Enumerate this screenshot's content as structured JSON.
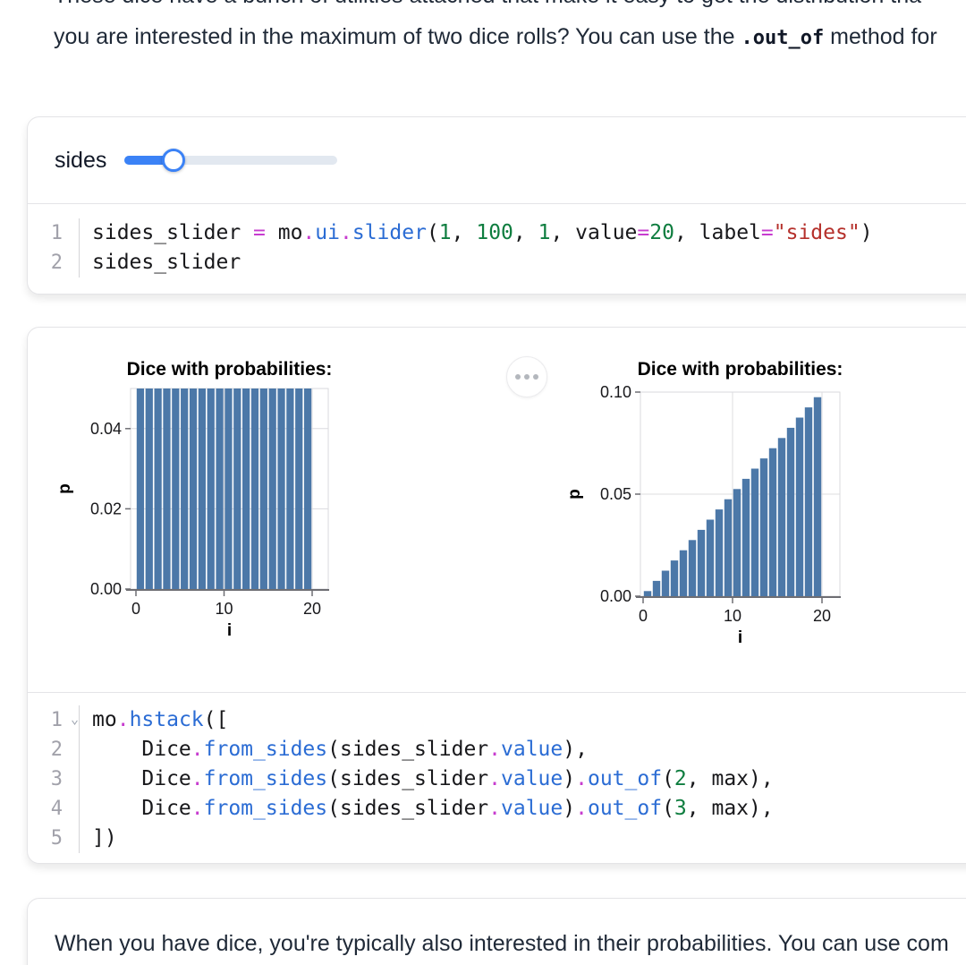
{
  "prose_top": {
    "line1": "These dice have a bunch of utilities attached that make it easy to get the distribution tha",
    "line2_prefix": "you are interested in the maximum of two dice rolls? You can use the ",
    "line2_code": ".out_of",
    "line2_suffix": " method for"
  },
  "slider": {
    "label": "sides",
    "min": 1,
    "max": 100,
    "step": 1,
    "value": 20
  },
  "code_colors": {
    "p": "#18181b",
    "o": "#c73ccf",
    "f": "#2b6cd4",
    "n": "#0e7d3f",
    "s": "#b5302b"
  },
  "cells": [
    {
      "gutter": [
        {
          "n": "1"
        },
        {
          "n": "2"
        }
      ],
      "lines": [
        [
          [
            "sides_slider ",
            "p"
          ],
          [
            "=",
            "o"
          ],
          [
            " mo",
            "p"
          ],
          [
            ".",
            "o"
          ],
          [
            "ui",
            "f"
          ],
          [
            ".",
            "o"
          ],
          [
            "slider",
            "f"
          ],
          [
            "(",
            "p"
          ],
          [
            "1",
            "n"
          ],
          [
            ", ",
            "p"
          ],
          [
            "100",
            "n"
          ],
          [
            ", ",
            "p"
          ],
          [
            "1",
            "n"
          ],
          [
            ", value",
            "p"
          ],
          [
            "=",
            "o"
          ],
          [
            "20",
            "n"
          ],
          [
            ", label",
            "p"
          ],
          [
            "=",
            "o"
          ],
          [
            "\"sides\"",
            "s"
          ],
          [
            ")",
            "p"
          ]
        ],
        [
          [
            "sides_slider",
            "p"
          ]
        ]
      ]
    },
    {
      "gutter": [
        {
          "n": "1",
          "fold": true
        },
        {
          "n": "2"
        },
        {
          "n": "3"
        },
        {
          "n": "4"
        },
        {
          "n": "5"
        }
      ],
      "lines": [
        [
          [
            "mo",
            "p"
          ],
          [
            ".",
            "o"
          ],
          [
            "hstack",
            "f"
          ],
          [
            "([",
            "p"
          ]
        ],
        [
          [
            "    Dice",
            "p"
          ],
          [
            ".",
            "o"
          ],
          [
            "from_sides",
            "f"
          ],
          [
            "(sides_slider",
            "p"
          ],
          [
            ".",
            "o"
          ],
          [
            "value",
            "f"
          ],
          [
            "),",
            "p"
          ]
        ],
        [
          [
            "    Dice",
            "p"
          ],
          [
            ".",
            "o"
          ],
          [
            "from_sides",
            "f"
          ],
          [
            "(sides_slider",
            "p"
          ],
          [
            ".",
            "o"
          ],
          [
            "value",
            "f"
          ],
          [
            ")",
            "p"
          ],
          [
            ".",
            "o"
          ],
          [
            "out_of",
            "f"
          ],
          [
            "(",
            "p"
          ],
          [
            "2",
            "n"
          ],
          [
            ", max),",
            "p"
          ]
        ],
        [
          [
            "    Dice",
            "p"
          ],
          [
            ".",
            "o"
          ],
          [
            "from_sides",
            "f"
          ],
          [
            "(sides_slider",
            "p"
          ],
          [
            ".",
            "o"
          ],
          [
            "value",
            "f"
          ],
          [
            ")",
            "p"
          ],
          [
            ".",
            "o"
          ],
          [
            "out_of",
            "f"
          ],
          [
            "(",
            "p"
          ],
          [
            "3",
            "n"
          ],
          [
            ", max),",
            "p"
          ]
        ],
        [
          [
            "])",
            "p"
          ]
        ]
      ]
    }
  ],
  "menu_button": {
    "icon": "ellipsis-icon"
  },
  "chart_data": [
    {
      "type": "bar",
      "title": "Dice with probabilities:",
      "xlabel": "i",
      "ylabel": "p",
      "x": [
        1,
        2,
        3,
        4,
        5,
        6,
        7,
        8,
        9,
        10,
        11,
        12,
        13,
        14,
        15,
        16,
        17,
        18,
        19,
        20
      ],
      "values": [
        0.05,
        0.05,
        0.05,
        0.05,
        0.05,
        0.05,
        0.05,
        0.05,
        0.05,
        0.05,
        0.05,
        0.05,
        0.05,
        0.05,
        0.05,
        0.05,
        0.05,
        0.05,
        0.05,
        0.05
      ],
      "ylim": [
        0,
        0.05
      ],
      "xticks": [
        0,
        10,
        20
      ],
      "yticks": [
        0,
        0.02,
        0.04
      ],
      "ytick_labels": [
        "0.00",
        "0.02",
        "0.04"
      ],
      "grid": true,
      "legend": "none",
      "bar_color": "#4c78a8"
    },
    {
      "type": "bar",
      "title": "Dice with probabilities:",
      "xlabel": "i",
      "ylabel": "p",
      "x": [
        1,
        2,
        3,
        4,
        5,
        6,
        7,
        8,
        9,
        10,
        11,
        12,
        13,
        14,
        15,
        16,
        17,
        18,
        19,
        20
      ],
      "values": [
        0.0025,
        0.0075,
        0.0125,
        0.0175,
        0.0225,
        0.0275,
        0.0325,
        0.0375,
        0.0425,
        0.0475,
        0.0525,
        0.0575,
        0.0625,
        0.0675,
        0.0725,
        0.0775,
        0.0825,
        0.0875,
        0.0925,
        0.0975
      ],
      "ylim": [
        0,
        0.1
      ],
      "xticks": [
        0,
        10,
        20
      ],
      "yticks": [
        0,
        0.05,
        0.1
      ],
      "ytick_labels": [
        "0.00",
        "0.05",
        "0.10"
      ],
      "grid": true,
      "legend": "none",
      "bar_color": "#4c78a8"
    }
  ],
  "prose_bottom": {
    "text": "When you have dice, you're typically also interested in their probabilities. You can use com"
  },
  "colors": {
    "accent": "#3b82f6",
    "bar": "#4c78a8",
    "prose_text": "#1f2937",
    "card_border": "#e4e4e7"
  }
}
